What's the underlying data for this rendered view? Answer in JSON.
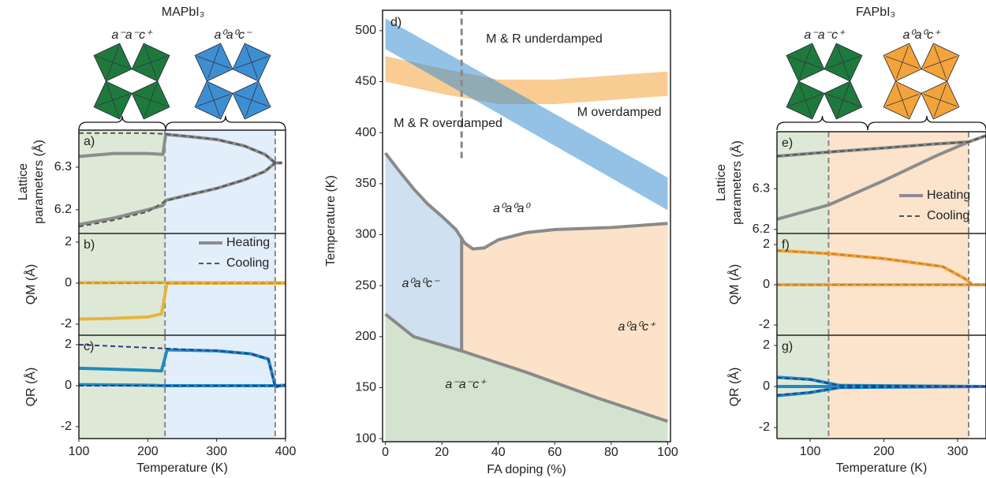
{
  "header": {
    "left": {
      "title": "MAPbI₃",
      "phases": [
        {
          "label": "a⁻a⁻c⁺",
          "color": "#1e7a3c"
        },
        {
          "label": "a⁰a⁰c⁻",
          "color": "#3d8fd1"
        }
      ]
    },
    "right": {
      "title": "FAPbI₃",
      "phases": [
        {
          "label": "a⁻a⁻c⁺",
          "color": "#1e7a3c"
        },
        {
          "label": "a⁰a⁰c⁺",
          "color": "#f2a33a"
        }
      ]
    }
  },
  "chart_data": [
    {
      "type": "line",
      "panel_label": "a)",
      "ylabel": [
        "Lattice",
        "parameters (Å)"
      ],
      "xlim": [
        100,
        400
      ],
      "ylim": [
        6.144,
        6.387
      ],
      "yticks": [
        6.2,
        6.3
      ],
      "regions": [
        {
          "from": 100,
          "to": 225,
          "color": "#dde9d6"
        },
        {
          "from": 225,
          "to": 385,
          "color": "#e2eef9"
        }
      ],
      "vlines": [
        225,
        385
      ],
      "series": [
        {
          "color": "#8c8c8c",
          "linestyle": "solid",
          "x": [
            100,
            150,
            200,
            222,
            226,
            260,
            300,
            340,
            370,
            385,
            395
          ],
          "values": [
            6.325,
            6.332,
            6.332,
            6.33,
            6.377,
            6.372,
            6.365,
            6.35,
            6.33,
            6.31,
            6.31
          ]
        },
        {
          "color": "#8c8c8c",
          "linestyle": "solid",
          "x": [
            100,
            150,
            200,
            222,
            226,
            260,
            300,
            340,
            370,
            385,
            395
          ],
          "values": [
            6.165,
            6.18,
            6.2,
            6.21,
            6.222,
            6.235,
            6.25,
            6.27,
            6.29,
            6.31,
            6.31
          ]
        },
        {
          "color": "#555555",
          "linestyle": "dashed",
          "x": [
            100,
            150,
            200,
            225,
            260,
            300,
            340,
            370,
            385,
            395
          ],
          "values": [
            6.38,
            6.38,
            6.38,
            6.378,
            6.372,
            6.365,
            6.35,
            6.33,
            6.31,
            6.31
          ]
        },
        {
          "color": "#555555",
          "linestyle": "dashed",
          "x": [
            100,
            150,
            200,
            225,
            260,
            300,
            340,
            370,
            385,
            395
          ],
          "values": [
            6.16,
            6.175,
            6.195,
            6.22,
            6.235,
            6.25,
            6.27,
            6.29,
            6.31,
            6.31
          ]
        }
      ]
    },
    {
      "type": "line",
      "panel_label": "b)",
      "ylabel": [
        "QM (Å)"
      ],
      "xlim": [
        100,
        400
      ],
      "ylim": [
        -2.54,
        2.42
      ],
      "yticks": [
        2,
        0,
        -2
      ],
      "legend": "upper right",
      "regions": [
        {
          "from": 100,
          "to": 225,
          "color": "#dde9d6"
        },
        {
          "from": 225,
          "to": 385,
          "color": "#e2eef9"
        }
      ],
      "vlines": [
        225,
        385
      ],
      "series": [
        {
          "name": "Heating",
          "color": "#8c8c8c",
          "linestyle": "solid",
          "x": [],
          "values": []
        },
        {
          "name": "Cooling",
          "color": "#555555",
          "linestyle": "dashed",
          "x": [],
          "values": []
        },
        {
          "color": "#e6b43e",
          "linestyle": "solid",
          "x": [
            100,
            150,
            200,
            220,
            228,
            300,
            400
          ],
          "values": [
            -1.75,
            -1.72,
            -1.65,
            -1.5,
            0,
            0,
            0
          ]
        },
        {
          "color": "#e6b43e",
          "linestyle": "solid",
          "x": [
            100,
            200,
            300,
            400
          ],
          "values": [
            0.02,
            0.03,
            0.02,
            0.02
          ]
        },
        {
          "color": "#d08a30",
          "linestyle": "dashed",
          "x": [
            100,
            200,
            300,
            400
          ],
          "values": [
            0,
            0,
            0,
            0
          ]
        }
      ]
    },
    {
      "type": "line",
      "panel_label": "c)",
      "ylabel": [
        "QR (Å)"
      ],
      "xlim": [
        100,
        400
      ],
      "ylim": [
        -2.58,
        2.46
      ],
      "yticks": [
        2,
        0,
        -2
      ],
      "xticks": [
        100,
        200,
        300,
        400
      ],
      "xlabel": "Temperature (K)",
      "regions": [
        {
          "from": 100,
          "to": 225,
          "color": "#dde9d6"
        },
        {
          "from": 225,
          "to": 385,
          "color": "#e2eef9"
        }
      ],
      "vlines": [
        225,
        385
      ],
      "series": [
        {
          "color": "#1f8bc0",
          "linestyle": "solid",
          "x": [
            100,
            150,
            200,
            220,
            228,
            300,
            350,
            375,
            385,
            400
          ],
          "values": [
            0.85,
            0.8,
            0.75,
            0.72,
            1.75,
            1.7,
            1.55,
            1.3,
            0,
            0.02
          ]
        },
        {
          "color": "#1f8bc0",
          "linestyle": "solid",
          "x": [
            100,
            200,
            225,
            300,
            400
          ],
          "values": [
            0.05,
            0.02,
            0,
            0,
            0
          ]
        },
        {
          "color": "#2b3a8c",
          "linestyle": "dashed",
          "x": [
            100,
            200,
            300,
            350,
            375,
            385,
            400
          ],
          "values": [
            2.0,
            1.85,
            1.7,
            1.55,
            1.3,
            -0.1,
            0.05
          ]
        },
        {
          "color": "#2b3a8c",
          "linestyle": "dashed",
          "x": [
            100,
            200,
            300,
            400
          ],
          "values": [
            0,
            0,
            0,
            0
          ]
        }
      ]
    },
    {
      "type": "phase",
      "panel_label": "d)",
      "xlabel": "FA doping (%)",
      "ylabel": "Temperature (K)",
      "xlim": [
        -1,
        101
      ],
      "ylim": [
        97,
        520
      ],
      "xticks": [
        0,
        20,
        40,
        60,
        80,
        100
      ],
      "yticks": [
        100,
        150,
        200,
        250,
        300,
        350,
        400,
        450,
        500
      ],
      "regions": [
        {
          "text": "a⁻a⁻c⁺",
          "color": "#d3e3d0",
          "label_color": "#2a7a45",
          "x": [
            0,
            10,
            27,
            50,
            75,
            100,
            100,
            0
          ],
          "values": [
            222,
            200,
            186,
            165,
            140,
            117,
            97,
            97
          ]
        },
        {
          "text": "a⁰a⁰c⁻",
          "color": "#cfe0f0",
          "label_color": "#3d8fd1",
          "x": [
            0,
            5,
            10,
            15,
            20,
            25,
            27,
            27,
            10,
            0
          ],
          "values": [
            380,
            362,
            345,
            330,
            318,
            305,
            298,
            186,
            200,
            222
          ]
        },
        {
          "text": "a⁰a⁰c⁺",
          "color": "#fbe2c8",
          "label_color": "#f0a030",
          "x": [
            27,
            28,
            31,
            35,
            40,
            50,
            60,
            80,
            100,
            100,
            75,
            50,
            27
          ],
          "values": [
            298,
            292,
            286,
            287,
            295,
            302,
            305,
            307,
            311,
            117,
            140,
            165,
            186
          ]
        },
        {
          "text": "a⁰a⁰a⁰",
          "color": "#ffffff",
          "label_color": "#999999",
          "x": [],
          "values": []
        }
      ],
      "boundaries": [
        {
          "x": [
            0,
            10,
            27,
            50,
            75,
            100
          ],
          "values": [
            222,
            200,
            186,
            165,
            140,
            117
          ]
        },
        {
          "x": [
            0,
            5,
            10,
            15,
            20,
            25,
            28,
            31,
            35,
            40,
            50,
            60,
            80,
            100
          ],
          "values": [
            380,
            362,
            345,
            330,
            318,
            305,
            292,
            286,
            287,
            295,
            302,
            305,
            307,
            311
          ]
        },
        {
          "x": [
            27,
            27
          ],
          "values": [
            186,
            298
          ]
        }
      ],
      "bands": [
        {
          "color": "#f2a33a",
          "x": [
            0,
            20,
            40,
            60,
            80,
            100
          ],
          "upper": [
            475,
            463,
            452,
            452,
            456,
            460
          ],
          "lower": [
            450,
            438,
            428,
            428,
            432,
            436
          ]
        },
        {
          "color": "#3d8fd1",
          "x": [
            0,
            100
          ],
          "upper": [
            512,
            356
          ],
          "lower": [
            482,
            324
          ]
        }
      ],
      "vline": {
        "x": 27,
        "from": 375,
        "to": 520
      },
      "annotations": [
        "M & R underdamped",
        "M overdamped",
        "M & R overdamped"
      ]
    },
    {
      "type": "line",
      "panel_label": "e)",
      "ylabel": [
        "Lattice",
        "parameters (Å)"
      ],
      "xlim": [
        55,
        338.5
      ],
      "ylim": [
        6.19,
        6.44
      ],
      "yticks": [
        6.2,
        6.3
      ],
      "legend": "lower right",
      "regions": [
        {
          "from": 55,
          "to": 125,
          "color": "#dde9d6"
        },
        {
          "from": 125,
          "to": 315,
          "color": "#fbe3cc"
        }
      ],
      "vlines": [
        125,
        315
      ],
      "series": [
        {
          "name": "Heating",
          "color": "#8c8c8c",
          "linestyle": "solid",
          "x": [
            55,
            125,
            200,
            270,
            315,
            338
          ],
          "values": [
            6.38,
            6.39,
            6.4,
            6.41,
            6.415,
            6.43
          ]
        },
        {
          "name": "Cooling",
          "color": "#555555",
          "linestyle": "dashed",
          "x": [
            55,
            125,
            200,
            270,
            315,
            338
          ],
          "values": [
            6.225,
            6.26,
            6.32,
            6.38,
            6.415,
            6.43
          ]
        },
        {
          "color": "#8c8c8c",
          "linestyle": "solid",
          "x": [
            55,
            125,
            200,
            270,
            315
          ],
          "values": [
            6.225,
            6.26,
            6.32,
            6.38,
            6.415
          ]
        },
        {
          "color": "#555555",
          "linestyle": "dashed",
          "x": [
            55,
            125,
            200,
            270,
            315
          ],
          "values": [
            6.38,
            6.39,
            6.4,
            6.41,
            6.415
          ]
        }
      ]
    },
    {
      "type": "line",
      "panel_label": "f)",
      "ylabel": [
        "QM (Å)"
      ],
      "xlim": [
        55,
        338.5
      ],
      "ylim": [
        -2.51,
        2.55
      ],
      "yticks": [
        2,
        0,
        -2
      ],
      "regions": [
        {
          "from": 55,
          "to": 125,
          "color": "#dde9d6"
        },
        {
          "from": 125,
          "to": 315,
          "color": "#fbe3cc"
        }
      ],
      "vlines": [
        125,
        315
      ],
      "series": [
        {
          "color": "#f0a43a",
          "linestyle": "solid",
          "x": [
            55,
            125,
            200,
            280,
            310,
            320,
            338
          ],
          "values": [
            1.7,
            1.55,
            1.3,
            0.9,
            0.3,
            0,
            0
          ]
        },
        {
          "color": "#f0a43a",
          "linestyle": "solid",
          "x": [
            55,
            200,
            300,
            338
          ],
          "values": [
            0,
            0,
            0,
            0
          ]
        },
        {
          "color": "#c9822c",
          "linestyle": "dashed",
          "x": [
            55,
            125,
            200,
            280,
            310,
            320,
            338
          ],
          "values": [
            1.7,
            1.55,
            1.3,
            0.9,
            0.3,
            0,
            0
          ]
        },
        {
          "color": "#c9822c",
          "linestyle": "dashed",
          "x": [
            55,
            200,
            300,
            338
          ],
          "values": [
            0,
            0,
            0,
            0
          ]
        }
      ]
    },
    {
      "type": "line",
      "panel_label": "g)",
      "ylabel": [
        "QR (Å)"
      ],
      "xlim": [
        55,
        338.5
      ],
      "ylim": [
        -2.54,
        2.5
      ],
      "yticks": [
        2,
        0,
        -2
      ],
      "xticks": [
        100,
        200,
        300
      ],
      "xlabel": "Temperature (K)",
      "regions": [
        {
          "from": 55,
          "to": 125,
          "color": "#dde9d6"
        },
        {
          "from": 125,
          "to": 315,
          "color": "#fbe3cc"
        }
      ],
      "vlines": [
        125,
        315
      ],
      "series": [
        {
          "color": "#1f8bc0",
          "linestyle": "solid",
          "x": [
            55,
            100,
            140,
            338
          ],
          "values": [
            0.45,
            0.35,
            0.05,
            0
          ]
        },
        {
          "color": "#1f8bc0",
          "linestyle": "solid",
          "x": [
            55,
            100,
            140,
            338
          ],
          "values": [
            -0.45,
            -0.3,
            -0.05,
            0
          ]
        },
        {
          "color": "#1f8bc0",
          "linestyle": "solid",
          "x": [
            55,
            338
          ],
          "values": [
            0,
            0
          ]
        },
        {
          "color": "#2b3a8c",
          "linestyle": "dashed",
          "x": [
            55,
            100,
            140,
            338
          ],
          "values": [
            0.42,
            0.33,
            0.05,
            0
          ]
        },
        {
          "color": "#2b3a8c",
          "linestyle": "dashed",
          "x": [
            55,
            100,
            140,
            338
          ],
          "values": [
            -0.42,
            -0.28,
            -0.05,
            0
          ]
        }
      ]
    }
  ]
}
